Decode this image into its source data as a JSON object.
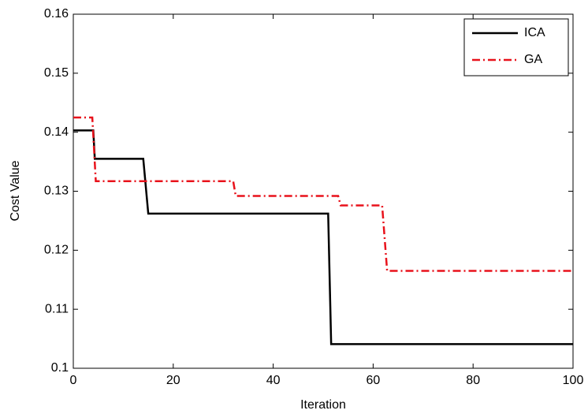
{
  "chart_data": {
    "type": "line",
    "x_label": "Iteration",
    "y_label": "Cost Value",
    "xlim": [
      0,
      100
    ],
    "xticks": [
      0,
      20,
      40,
      60,
      80,
      100
    ],
    "ylim": [
      0.1,
      0.16
    ],
    "yticks": [
      0.1,
      0.11,
      0.12,
      0.13,
      0.14,
      0.15,
      0.16
    ],
    "legend": "top-right",
    "series": [
      {
        "name": "ICA",
        "color": "#000000",
        "dash": "solid",
        "x": [
          0,
          4,
          4.3,
          14,
          15,
          51,
          51.6,
          100
        ],
        "values": [
          0.1403,
          0.1403,
          0.1355,
          0.1355,
          0.1262,
          0.1262,
          0.1041,
          0.1041
        ]
      },
      {
        "name": "GA",
        "color": "#e8121b",
        "dash": "dashdot",
        "x": [
          0,
          3.8,
          4.5,
          32,
          32.5,
          53,
          53.5,
          61.8,
          62.8,
          100
        ],
        "values": [
          0.1425,
          0.1425,
          0.1317,
          0.1317,
          0.1292,
          0.1292,
          0.1276,
          0.1276,
          0.1165,
          0.1165
        ]
      }
    ]
  }
}
